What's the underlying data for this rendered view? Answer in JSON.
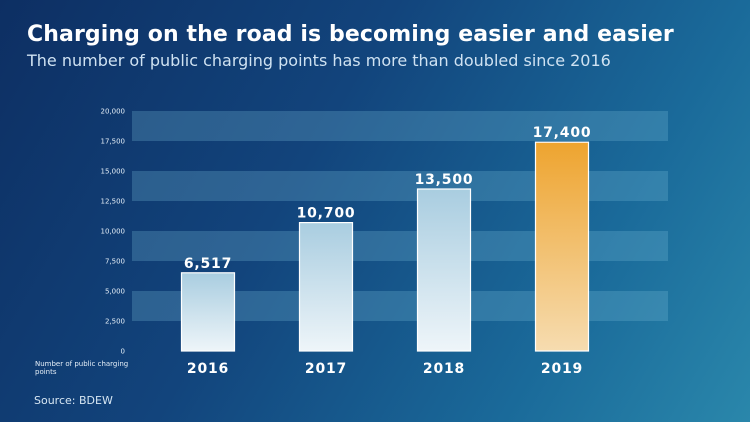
{
  "title": "Charging on the road is becoming easier and easier",
  "subtitle": "The number of public charging points has more than doubled since 2016",
  "source": "Source: BDEW",
  "chart_data": {
    "type": "bar",
    "categories": [
      "2016",
      "2017",
      "2018",
      "2019"
    ],
    "values": [
      6517,
      10700,
      13500,
      17400
    ],
    "value_labels": [
      "6,517",
      "10,700",
      "13,500",
      "17,400"
    ],
    "ylabel": "Number of public charging points",
    "ylim": [
      0,
      20000
    ],
    "yticks": [
      0,
      2500,
      5000,
      7500,
      10000,
      12500,
      15000,
      17500,
      20000
    ],
    "ytick_labels": [
      "0",
      "2,500",
      "5,000",
      "7,500",
      "10,000",
      "12,500",
      "15,000",
      "17,500",
      "20,000"
    ],
    "grid": "horizontal bands",
    "highlight_category": "2019",
    "colors": {
      "bar": "#cfe3ee",
      "highlight_bar": "#f1ad3a"
    }
  }
}
